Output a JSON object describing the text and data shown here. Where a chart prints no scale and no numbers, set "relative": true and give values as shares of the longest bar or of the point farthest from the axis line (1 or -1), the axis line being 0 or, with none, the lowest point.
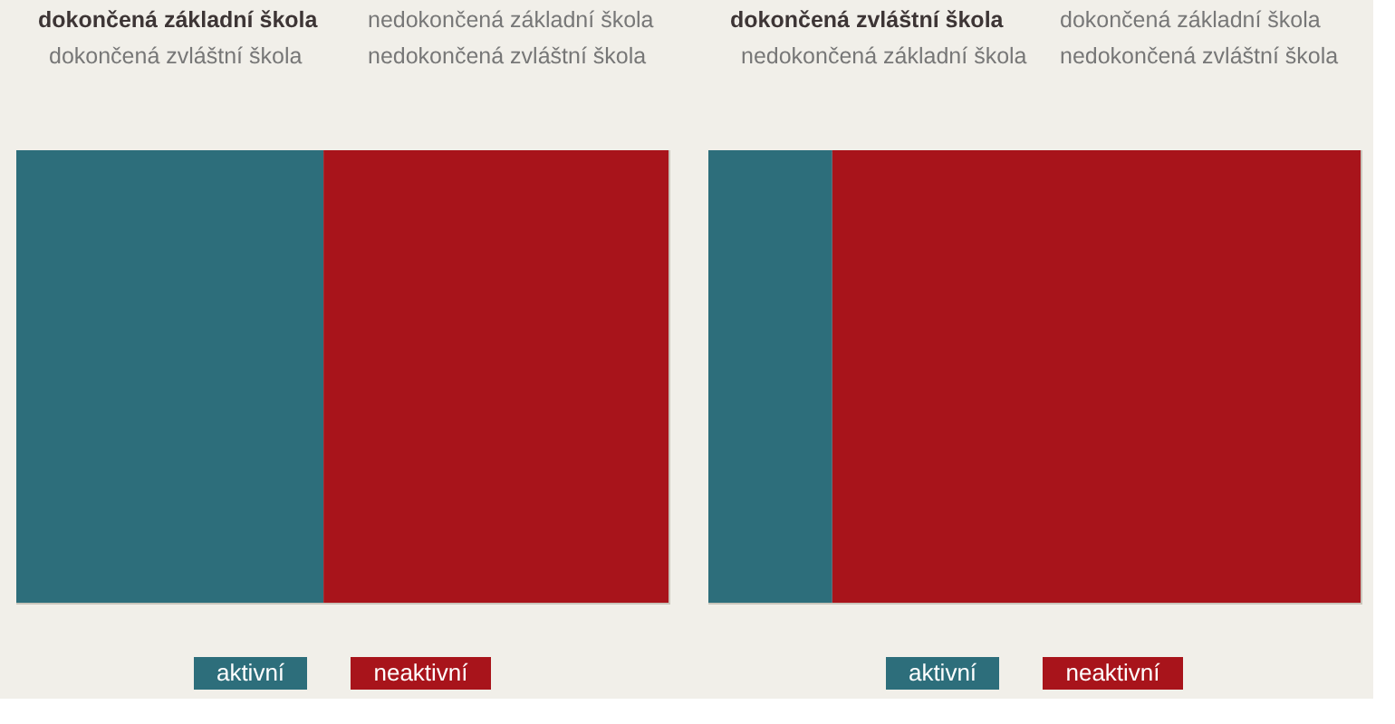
{
  "chart_data": [
    {
      "type": "bar",
      "stacked": true,
      "orientation": "horizontal",
      "relative": true,
      "legend": "bottom",
      "categories": [
        null
      ],
      "title": "dokončená základní škola",
      "annotations": [
        "nedokončená základní škola",
        "dokončená zvláštní škola",
        "nedokončená zvláštní škola"
      ],
      "series": [
        {
          "name": "aktivní",
          "color": "#2d6e7b",
          "values": [
            0.471
          ]
        },
        {
          "name": "neaktivní",
          "color": "#a8141b",
          "values": [
            0.529
          ]
        }
      ]
    },
    {
      "type": "bar",
      "stacked": true,
      "orientation": "horizontal",
      "relative": true,
      "legend": "bottom",
      "categories": [
        null
      ],
      "title": "dokončená zvláštní škola",
      "annotations": [
        "dokončená základní škola",
        "nedokončená základní škola",
        "nedokončená zvláštní škola"
      ],
      "series": [
        {
          "name": "aktivní",
          "color": "#2d6e7b",
          "values": [
            0.19
          ]
        },
        {
          "name": "neaktivní",
          "color": "#a8141b",
          "values": [
            0.81
          ]
        }
      ]
    }
  ]
}
